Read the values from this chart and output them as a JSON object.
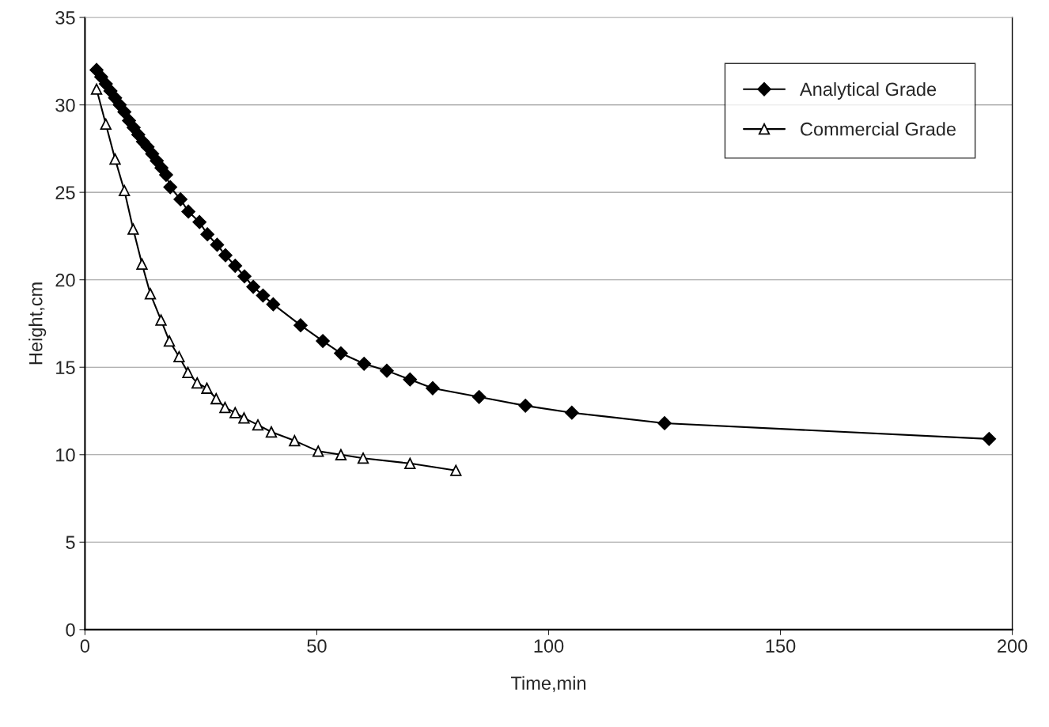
{
  "chart_data": {
    "type": "line",
    "xlabel": "Time,min",
    "ylabel": "Height,cm",
    "xlim": [
      0,
      200
    ],
    "xticks": [
      0,
      50,
      100,
      150,
      200
    ],
    "ylim": [
      0,
      35
    ],
    "yticks": [
      0,
      5,
      10,
      15,
      20,
      25,
      30,
      35
    ],
    "grid": "y",
    "legend": "top right",
    "line_style": "solid",
    "series": [
      {
        "name": "Analytical Grade",
        "color": "#000000",
        "marker": "diamond",
        "x": [
          2.5,
          3.5,
          4.5,
          5.5,
          6.5,
          7.5,
          8.5,
          9.5,
          10.5,
          11.5,
          12.5,
          13.5,
          14.5,
          15.5,
          16.5,
          17.5,
          18.4,
          20.6,
          22.3,
          24.7,
          26.4,
          28.5,
          30.3,
          32.4,
          34.4,
          36.3,
          38.4,
          40.6,
          46.5,
          51.3,
          55.2,
          60.2,
          65.1,
          70.1,
          75.0,
          85,
          95,
          105,
          125,
          195
        ],
        "values": [
          32.0,
          31.6,
          31.2,
          30.8,
          30.4,
          30.0,
          29.6,
          29.1,
          28.7,
          28.3,
          27.9,
          27.6,
          27.2,
          26.8,
          26.4,
          26.0,
          25.3,
          24.6,
          23.9,
          23.3,
          22.6,
          22.0,
          21.4,
          20.8,
          20.2,
          19.6,
          19.1,
          18.6,
          17.4,
          16.5,
          15.8,
          15.2,
          14.8,
          14.3,
          13.8,
          13.3,
          12.8,
          12.4,
          11.8,
          10.9
        ]
      },
      {
        "name": "Commercial Grade",
        "color": "#000000",
        "marker": "triangle",
        "x": [
          2.5,
          4.5,
          6.5,
          8.5,
          10.4,
          12.3,
          14.1,
          16.4,
          18.2,
          20.3,
          22.2,
          24.2,
          26.3,
          28.3,
          30.2,
          32.4,
          34.3,
          37.3,
          40.2,
          45.2,
          50.3,
          55.2,
          60.0,
          70.1,
          80.0
        ],
        "values": [
          30.9,
          28.9,
          26.9,
          25.1,
          22.9,
          20.9,
          19.2,
          17.7,
          16.5,
          15.6,
          14.7,
          14.1,
          13.8,
          13.2,
          12.7,
          12.4,
          12.1,
          11.7,
          11.3,
          10.8,
          10.2,
          10.0,
          9.8,
          9.5,
          9.1
        ]
      }
    ]
  }
}
